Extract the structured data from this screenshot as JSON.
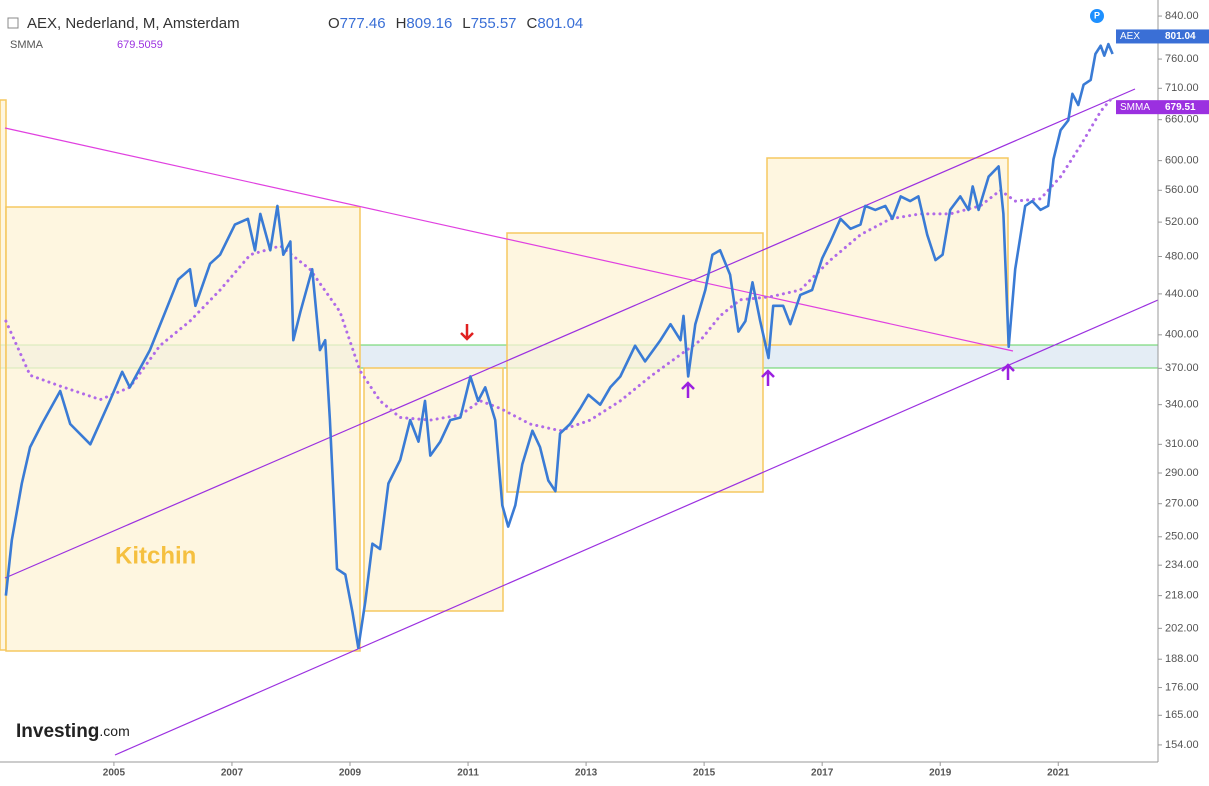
{
  "header": {
    "title": "AEX, Nederland, M, Amsterdam",
    "ohlc": [
      {
        "label": "O",
        "value": 777.46
      },
      {
        "label": "H",
        "value": 809.16
      },
      {
        "label": "L",
        "value": 755.57
      },
      {
        "label": "C",
        "value": 801.04
      }
    ],
    "indicator": "SMMA",
    "indicator_value": 679.5059
  },
  "chart_data": {
    "type": "line",
    "log_scale": true,
    "grid": false,
    "annotation": "Kitchin",
    "logo": {
      "brand": "Investing",
      "suffix": ".com"
    },
    "badge": "P",
    "price_tags": [
      {
        "name": "AEX",
        "label": "801.04",
        "value": 801.04,
        "color": "#3a6fd6"
      },
      {
        "name": "SMMA",
        "label": "679.51",
        "value": 679.51,
        "color": "#9b30e0"
      }
    ],
    "xlim": [
      2003.07,
      2022.69
    ],
    "xticks": [
      2005,
      2007,
      2009,
      2011,
      2013,
      2015,
      2017,
      2019,
      2021
    ],
    "ylim": [
      148,
      872
    ],
    "yticks": [
      {
        "value": 840,
        "label": "840.00"
      },
      {
        "value": 760,
        "label": "760.00"
      },
      {
        "value": 710,
        "label": "710.00"
      },
      {
        "value": 660,
        "label": "660.00"
      },
      {
        "value": 600,
        "label": "600.00"
      },
      {
        "value": 560,
        "label": "560.00"
      },
      {
        "value": 520,
        "label": "520.00"
      },
      {
        "value": 480,
        "label": "480.00"
      },
      {
        "value": 440,
        "label": "440.00"
      },
      {
        "value": 400,
        "label": "400.00"
      },
      {
        "value": 370,
        "label": "370.00"
      },
      {
        "value": 340,
        "label": "340.00"
      },
      {
        "value": 310,
        "label": "310.00"
      },
      {
        "value": 290,
        "label": "290.00"
      },
      {
        "value": 270,
        "label": "270.00"
      },
      {
        "value": 250,
        "label": "250.00"
      },
      {
        "value": 234,
        "label": "234.00"
      },
      {
        "value": 218,
        "label": "218.00"
      },
      {
        "value": 202,
        "label": "202.00"
      },
      {
        "value": 188,
        "label": "188.00"
      },
      {
        "value": 176,
        "label": "176.00"
      },
      {
        "value": 165,
        "label": "165.00"
      },
      {
        "value": 154,
        "label": "154.00"
      }
    ],
    "series": [
      {
        "name": "AEX",
        "color": "#3a7bd5",
        "style": "solid",
        "x": [
          2003.17,
          2003.27,
          2003.44,
          2003.58,
          2003.78,
          2004.09,
          2004.26,
          2004.6,
          2004.93,
          2005.14,
          2005.27,
          2005.61,
          2005.87,
          2006.09,
          2006.29,
          2006.38,
          2006.63,
          2006.8,
          2007.05,
          2007.27,
          2007.39,
          2007.48,
          2007.65,
          2007.77,
          2007.87,
          2007.99,
          2008.04,
          2008.16,
          2008.36,
          2008.49,
          2008.58,
          2008.66,
          2008.78,
          2008.92,
          2009.04,
          2009.14,
          2009.26,
          2009.38,
          2009.51,
          2009.65,
          2009.85,
          2010.02,
          2010.16,
          2010.27,
          2010.36,
          2010.53,
          2010.7,
          2010.87,
          2011.04,
          2011.17,
          2011.29,
          2011.46,
          2011.58,
          2011.68,
          2011.8,
          2011.92,
          2012.09,
          2012.22,
          2012.36,
          2012.48,
          2012.56,
          2012.73,
          2012.9,
          2013.04,
          2013.24,
          2013.41,
          2013.58,
          2013.83,
          2014.0,
          2014.26,
          2014.43,
          2014.6,
          2014.65,
          2014.73,
          2014.85,
          2015.02,
          2015.14,
          2015.27,
          2015.44,
          2015.58,
          2015.7,
          2015.82,
          2015.95,
          2016.09,
          2016.17,
          2016.34,
          2016.46,
          2016.63,
          2016.83,
          2017.0,
          2017.14,
          2017.31,
          2017.48,
          2017.65,
          2017.73,
          2017.9,
          2018.07,
          2018.19,
          2018.33,
          2018.49,
          2018.63,
          2018.78,
          2018.92,
          2019.04,
          2019.17,
          2019.34,
          2019.48,
          2019.55,
          2019.65,
          2019.82,
          2019.99,
          2020.07,
          2020.16,
          2020.27,
          2020.44,
          2020.56,
          2020.7,
          2020.83,
          2020.92,
          2021.04,
          2021.17,
          2021.24,
          2021.34,
          2021.43,
          2021.55,
          2021.63,
          2021.72,
          2021.78,
          2021.85,
          2021.92
        ],
        "values": [
          218,
          248,
          283,
          308,
          325,
          351,
          325,
          310,
          343,
          367,
          354,
          386,
          422,
          455,
          466,
          428,
          472,
          482,
          517,
          524,
          487,
          530,
          487,
          540,
          482,
          497,
          395,
          422,
          466,
          386,
          395,
          328,
          232,
          229,
          210,
          193,
          215,
          246,
          243,
          283,
          299,
          328,
          312,
          343,
          302,
          312,
          328,
          330,
          363,
          343,
          354,
          328,
          269,
          256,
          269,
          296,
          320,
          308,
          285,
          278,
          318,
          325,
          337,
          348,
          340,
          354,
          363,
          390,
          376,
          395,
          410,
          395,
          418,
          363,
          410,
          444,
          482,
          487,
          460,
          403,
          413,
          452,
          413,
          379,
          428,
          428,
          410,
          439,
          444,
          478,
          497,
          524,
          512,
          517,
          540,
          535,
          540,
          524,
          552,
          546,
          552,
          505,
          476,
          482,
          535,
          552,
          535,
          565,
          535,
          578,
          592,
          530,
          389,
          466,
          540,
          546,
          535,
          540,
          602,
          644,
          659,
          701,
          683,
          716,
          724,
          769,
          784,
          766,
          787,
          769
        ]
      },
      {
        "name": "SMMA",
        "color": "#b06ae8",
        "style": "dotted",
        "x": [
          2003.17,
          2003.58,
          2004.09,
          2004.77,
          2005.27,
          2005.78,
          2006.29,
          2006.8,
          2007.31,
          2007.82,
          2008.32,
          2008.83,
          2009.17,
          2009.51,
          2009.85,
          2010.36,
          2010.87,
          2011.21,
          2011.55,
          2012.05,
          2012.56,
          2013.07,
          2013.58,
          2014.09,
          2014.6,
          2014.94,
          2015.27,
          2015.61,
          2016.12,
          2016.63,
          2017.14,
          2017.65,
          2018.16,
          2018.66,
          2019.17,
          2019.68,
          2020.02,
          2020.27,
          2020.7,
          2021.04,
          2021.38,
          2021.72,
          2021.89
        ],
        "values": [
          413,
          364,
          355,
          344,
          354,
          390,
          413,
          444,
          482,
          492,
          466,
          422,
          368,
          343,
          330,
          328,
          332,
          343,
          337,
          325,
          320,
          328,
          343,
          363,
          382,
          395,
          418,
          434,
          437,
          444,
          476,
          505,
          524,
          530,
          530,
          540,
          560,
          546,
          549,
          578,
          622,
          673,
          692
        ]
      }
    ]
  }
}
